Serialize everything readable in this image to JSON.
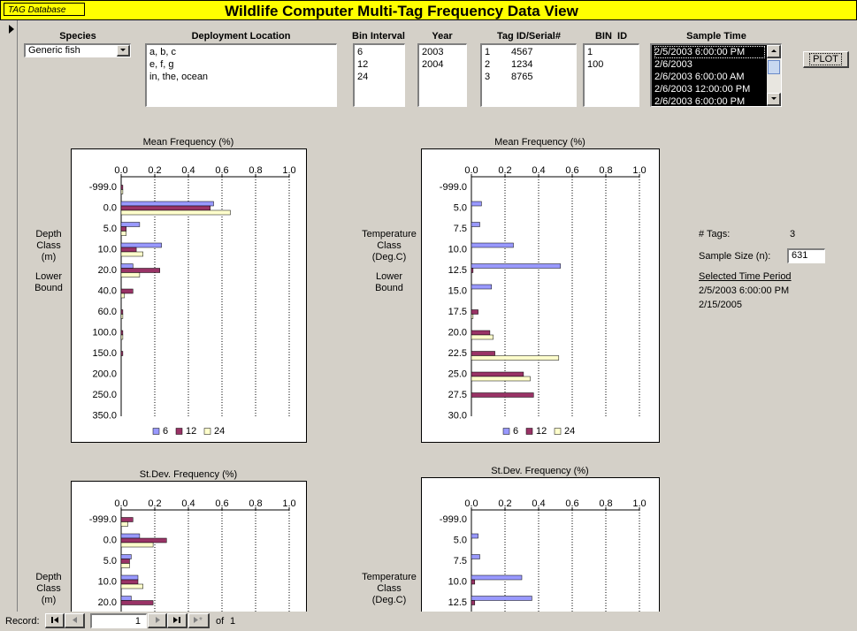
{
  "header": {
    "app_label": "TAG Database",
    "title": "Wildlife Computer Multi-Tag Frequency Data View"
  },
  "filters": {
    "species": {
      "label": "Species",
      "value": "Generic fish"
    },
    "deployment_location": {
      "label": "Deployment Location",
      "items": [
        "a, b, c",
        "e, f, g",
        "in, the, ocean"
      ]
    },
    "bin_interval": {
      "label": "Bin Interval",
      "items": [
        6,
        12,
        24
      ]
    },
    "year": {
      "label": "Year",
      "items": [
        2003,
        2004
      ]
    },
    "tag_id": {
      "label": "Tag ID/Serial#",
      "rows": [
        [
          1,
          4567
        ],
        [
          2,
          1234
        ],
        [
          3,
          8765
        ]
      ]
    },
    "bin_id": {
      "label": "BIN  ID",
      "items": [
        1,
        100
      ]
    },
    "sample_time": {
      "label": "Sample Time",
      "items": [
        "2/5/2003 6:00:00 PM",
        "2/6/2003",
        "2/6/2003 6:00:00 AM",
        "2/6/2003 12:00:00 PM",
        "2/6/2003 6:00:00 PM"
      ]
    }
  },
  "plot_button": "PLOT",
  "chart_data": [
    {
      "type": "bar",
      "orientation": "horizontal",
      "title": "Mean Frequency (%)",
      "y_label": [
        "Depth",
        "Class",
        "(m)"
      ],
      "y_note": [
        "Lower",
        "Bound"
      ],
      "categories": [
        "-999.0",
        "0.0",
        "5.0",
        "10.0",
        "20.0",
        "40.0",
        "60.0",
        "100.0",
        "150.0",
        "200.0",
        "250.0",
        "350.0"
      ],
      "series": [
        {
          "name": "6",
          "color": "#9999ff",
          "values": [
            0,
            0.55,
            0.11,
            0.24,
            0.07,
            0,
            0,
            0,
            0,
            0,
            0,
            0
          ]
        },
        {
          "name": "12",
          "color": "#993366",
          "values": [
            0.01,
            0.53,
            0.03,
            0.09,
            0.23,
            0.07,
            0.01,
            0.01,
            0.01,
            0,
            0,
            0
          ]
        },
        {
          "name": "24",
          "color": "#ffffcc",
          "values": [
            0.01,
            0.65,
            0.03,
            0.13,
            0.11,
            0.02,
            0.01,
            0.01,
            0,
            0,
            0,
            0
          ]
        }
      ],
      "xlim": [
        0,
        1
      ],
      "xticks": [
        {
          "value": 0,
          "label": "0.0"
        },
        0.2,
        0.4,
        0.6,
        0.8,
        {
          "value": 1,
          "label": "1.0"
        }
      ],
      "grid": true,
      "legend": "bottom"
    },
    {
      "type": "bar",
      "orientation": "horizontal",
      "title": "Mean Frequency (%)",
      "y_label": [
        "Temperature",
        "Class",
        "(Deg.C)"
      ],
      "y_note": [
        "Lower",
        "Bound"
      ],
      "categories": [
        "-999.0",
        "5.0",
        "7.5",
        "10.0",
        "12.5",
        "15.0",
        "17.5",
        "20.0",
        "22.5",
        "25.0",
        "27.5",
        "30.0"
      ],
      "series": [
        {
          "name": "6",
          "color": "#9999ff",
          "values": [
            0,
            0.06,
            0.05,
            0.25,
            0.53,
            0.12,
            0,
            0,
            0,
            0,
            0,
            0
          ]
        },
        {
          "name": "12",
          "color": "#993366",
          "values": [
            0,
            0,
            0,
            0,
            0.01,
            0,
            0.04,
            0.11,
            0.14,
            0.31,
            0.37,
            0
          ]
        },
        {
          "name": "24",
          "color": "#ffffcc",
          "values": [
            0,
            0,
            0,
            0,
            0,
            0,
            0.01,
            0.13,
            0.52,
            0.35,
            0,
            0
          ]
        }
      ],
      "xlim": [
        0,
        1
      ],
      "xticks": [
        {
          "value": 0,
          "label": "0.0"
        },
        0.2,
        0.4,
        0.6,
        0.8,
        {
          "value": 1,
          "label": "1.0"
        }
      ],
      "grid": true,
      "legend": "bottom"
    },
    {
      "type": "bar",
      "orientation": "horizontal",
      "title": "St.Dev. Frequency (%)",
      "y_label": [
        "Depth",
        "Class",
        "(m)"
      ],
      "categories": [
        "-999.0",
        "0.0",
        "5.0",
        "10.0",
        "20.0"
      ],
      "series": [
        {
          "name": "6",
          "color": "#9999ff",
          "values": [
            0,
            0.11,
            0.06,
            0.1,
            0.06
          ]
        },
        {
          "name": "12",
          "color": "#993366",
          "values": [
            0.07,
            0.27,
            0.05,
            0.1,
            0.19
          ]
        },
        {
          "name": "24",
          "color": "#ffffcc",
          "values": [
            0.04,
            0.19,
            0.05,
            0.13,
            null
          ]
        }
      ],
      "xlim": [
        0,
        1
      ],
      "xticks": [
        {
          "value": 0,
          "label": "0.0"
        },
        0.2,
        0.4,
        0.6,
        0.8,
        {
          "value": 1,
          "label": "1.0"
        }
      ],
      "grid": true
    },
    {
      "type": "bar",
      "orientation": "horizontal",
      "title": "St.Dev. Frequency (%)",
      "y_label": [
        "Temperature",
        "Class",
        "(Deg.C)"
      ],
      "categories": [
        "-999.0",
        "5.0",
        "7.5",
        "10.0",
        "12.5"
      ],
      "series": [
        {
          "name": "6",
          "color": "#9999ff",
          "values": [
            0,
            0.04,
            0.05,
            0.3,
            0.36
          ]
        },
        {
          "name": "12",
          "color": "#993366",
          "values": [
            0,
            0,
            0,
            0.02,
            0.02
          ]
        },
        {
          "name": "24",
          "color": "#ffffcc",
          "values": [
            0,
            0,
            0,
            0,
            null
          ]
        }
      ],
      "xlim": [
        0,
        1
      ],
      "xticks": [
        {
          "value": 0,
          "label": "0.0"
        },
        0.2,
        0.4,
        0.6,
        0.8,
        {
          "value": 1,
          "label": "1.0"
        }
      ],
      "grid": true
    }
  ],
  "summary": {
    "tags_label": "# Tags:",
    "tags": 3,
    "sample_size_label": "Sample Size (n):",
    "sample_size": 631,
    "period_label": "Selected Time Period",
    "period_start": "2/5/2003 6:00:00 PM",
    "period_end": "2/15/2005"
  },
  "record_nav": {
    "label": "Record:",
    "current": 1,
    "of_label": "of",
    "total": 1
  }
}
